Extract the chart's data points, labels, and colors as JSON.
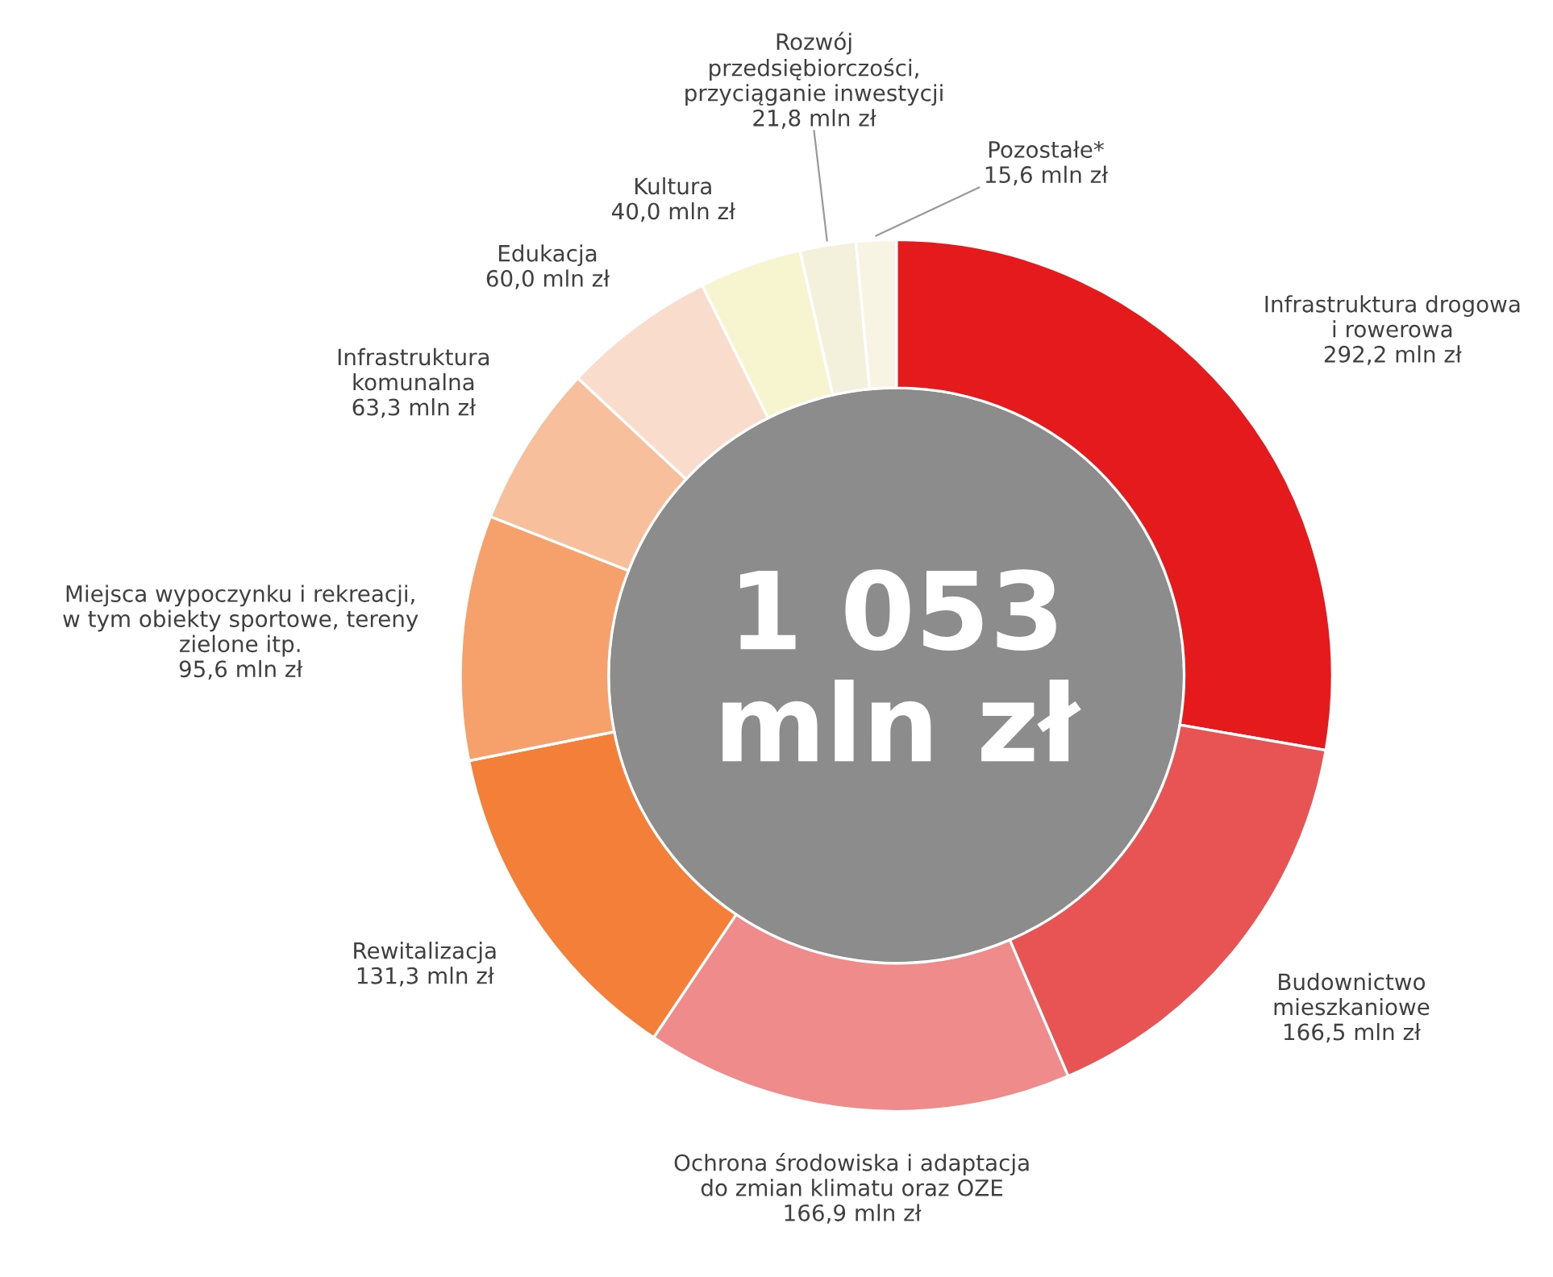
{
  "chart_data": {
    "type": "donut",
    "categories": [
      "Infrastruktura drogowa\ni rowerowa",
      "Budownictwo\nmieszkaniowe",
      "Ochrona środowiska i adaptacja\ndo zmian klimatu oraz OZE",
      "Rewitalizacja",
      "Miejsca wypoczynku i rekreacji,\nw tym obiekty sportowe, tereny\nzielone itp.",
      "Infrastruktura\nkomunalna",
      "Edukacja",
      "Kultura",
      "Rozwój\nprzedsiębiorczości,\nprzyciąganie inwestycji",
      "Pozostałe*"
    ],
    "values": [
      292.2,
      166.5,
      166.9,
      131.3,
      95.6,
      63.3,
      60.0,
      40.0,
      21.8,
      15.6
    ],
    "colors": [
      "#e41a1c",
      "#e85454",
      "#f08b8b",
      "#f37f38",
      "#f6a06c",
      "#f8bf9c",
      "#fadccd",
      "#f6f5cf",
      "#f3f1dc",
      "#f8f4e4"
    ],
    "value_labels": [
      "292,2 mln zł",
      "166,5 mln zł",
      "166,9 mln zł",
      "131,3 mln zł",
      "95,6 mln zł",
      "63,3 mln zł",
      "60,0 mln zł",
      "40,0 mln zł",
      "21,8 mln zł",
      "15,6 mln zł"
    ],
    "annotations": [
      "1 053\nmln zł"
    ]
  }
}
